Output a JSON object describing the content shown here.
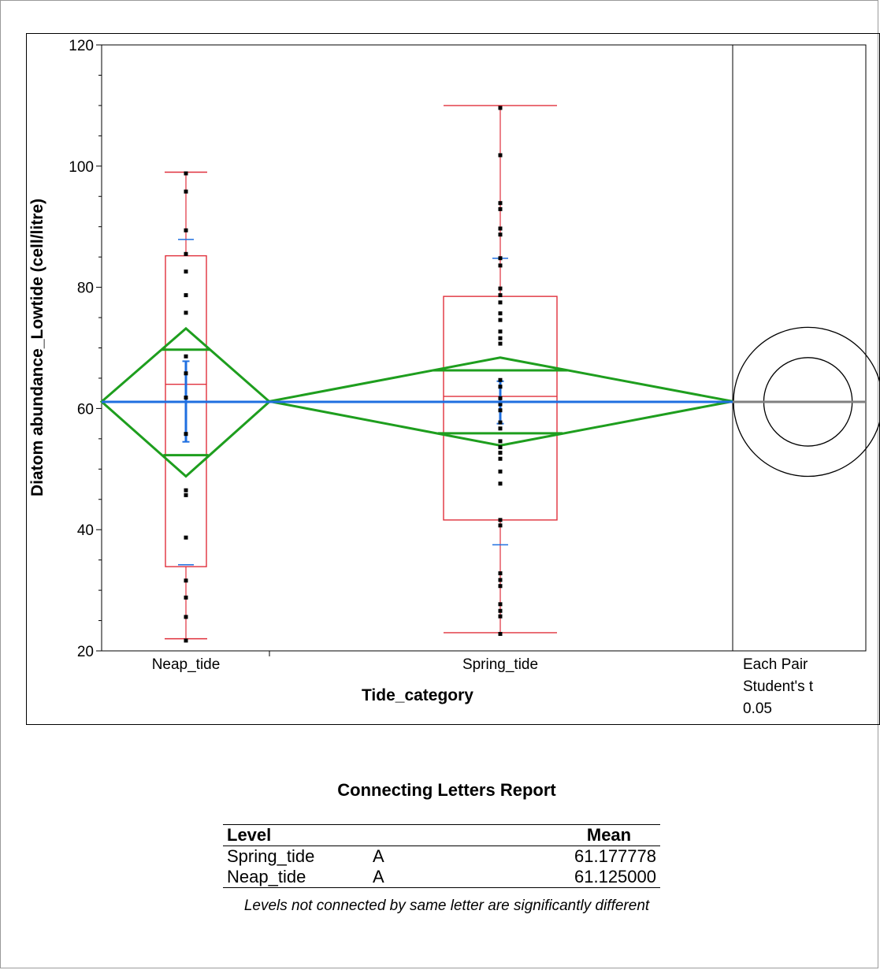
{
  "chart_data": {
    "type": "box_oneway",
    "xlabel": "Tide_category",
    "ylabel": "Diatom abundance_Lowtide (cell/litre)",
    "ylim": [
      20,
      120
    ],
    "y_ticks": [
      20,
      40,
      60,
      80,
      100,
      120
    ],
    "categories": [
      "Neap_tide",
      "Spring_tide"
    ],
    "grand_mean": 61.1,
    "comparison_label": [
      "Each Pair",
      "Student's t",
      "0.05"
    ],
    "colors": {
      "box": "#e0303c",
      "diamond": "#1e9e1e",
      "mean_line": "#1f6fe0",
      "points": "#000000",
      "circle_line": "#808080"
    },
    "groups": [
      {
        "name": "Neap_tide",
        "min": 22,
        "q1": 33.9,
        "median": 64,
        "q3": 85.2,
        "max": 99,
        "mean": 61.125,
        "diamond": [
          48.8,
          73.2
        ],
        "overlap_marks": [
          52.3,
          69.7
        ],
        "std_err_bar": [
          54.5,
          67.8
        ],
        "std_dev_marks": [
          34.2,
          87.9
        ],
        "points": [
          98.8,
          95.8,
          89.4,
          85.5,
          82.6,
          78.7,
          75.8,
          68.6,
          65.8,
          61.8,
          55.8,
          46.5,
          45.7,
          38.7,
          31.6,
          28.8,
          25.6,
          21.7
        ]
      },
      {
        "name": "Spring_tide",
        "min": 23,
        "q1": 41.6,
        "median": 62,
        "q3": 78.5,
        "max": 110,
        "mean": 61.177778,
        "diamond": [
          53.9,
          68.4
        ],
        "overlap_marks": [
          55.9,
          66.3
        ],
        "std_err_bar": [
          57.5,
          64.5
        ],
        "std_dev_marks": [
          37.5,
          84.8
        ],
        "points": [
          109.6,
          101.8,
          93.9,
          92.9,
          89.7,
          88.7,
          84.8,
          83.6,
          79.8,
          78.7,
          77.5,
          75.7,
          74.6,
          72.7,
          71.6,
          70.7,
          64.7,
          63.6,
          61.7,
          60.7,
          59.7,
          57.7,
          56.7,
          54.6,
          53.6,
          52.7,
          51.7,
          49.6,
          47.6,
          41.6,
          40.7,
          32.8,
          31.7,
          30.7,
          27.7,
          26.6,
          25.7,
          22.8
        ]
      }
    ],
    "comparison_circles": [
      {
        "name": "Neap_tide",
        "center": 61.1,
        "radius": 12.3
      },
      {
        "name": "Spring_tide",
        "center": 61.1,
        "radius": 7.3
      }
    ]
  },
  "report": {
    "title": "Connecting Letters Report",
    "headers": {
      "level": "Level",
      "mean": "Mean"
    },
    "rows": [
      {
        "level": "Spring_tide",
        "letter": "A",
        "mean": "61.177778"
      },
      {
        "level": "Neap_tide",
        "letter": "A",
        "mean": "61.125000"
      }
    ],
    "note": "Levels not connected by same letter are significantly different"
  }
}
